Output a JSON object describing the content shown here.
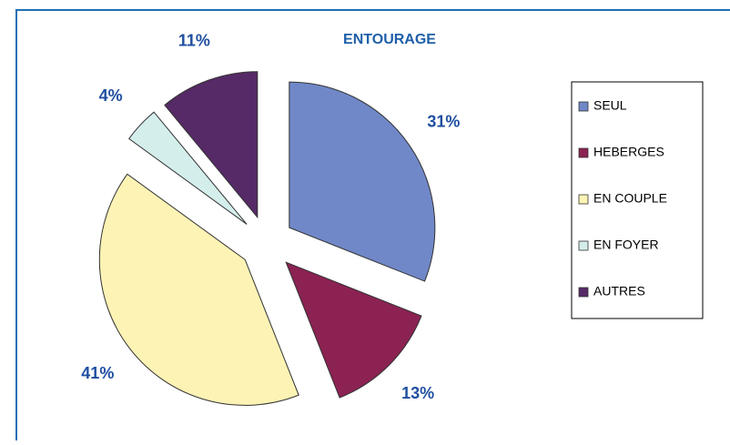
{
  "chart_data": {
    "type": "pie",
    "title": "ENTOURAGE",
    "categories": [
      "SEUL",
      "HEBERGES",
      "EN COUPLE",
      "EN FOYER",
      "AUTRES"
    ],
    "values": [
      31,
      13,
      41,
      4,
      11
    ],
    "value_labels": [
      "31%",
      "13%",
      "41%",
      "4%",
      "11%"
    ],
    "colors": [
      "#7088c8",
      "#8b2252",
      "#fdf3b5",
      "#d4eeec",
      "#552a66"
    ],
    "exploded": true,
    "legend": "right"
  }
}
